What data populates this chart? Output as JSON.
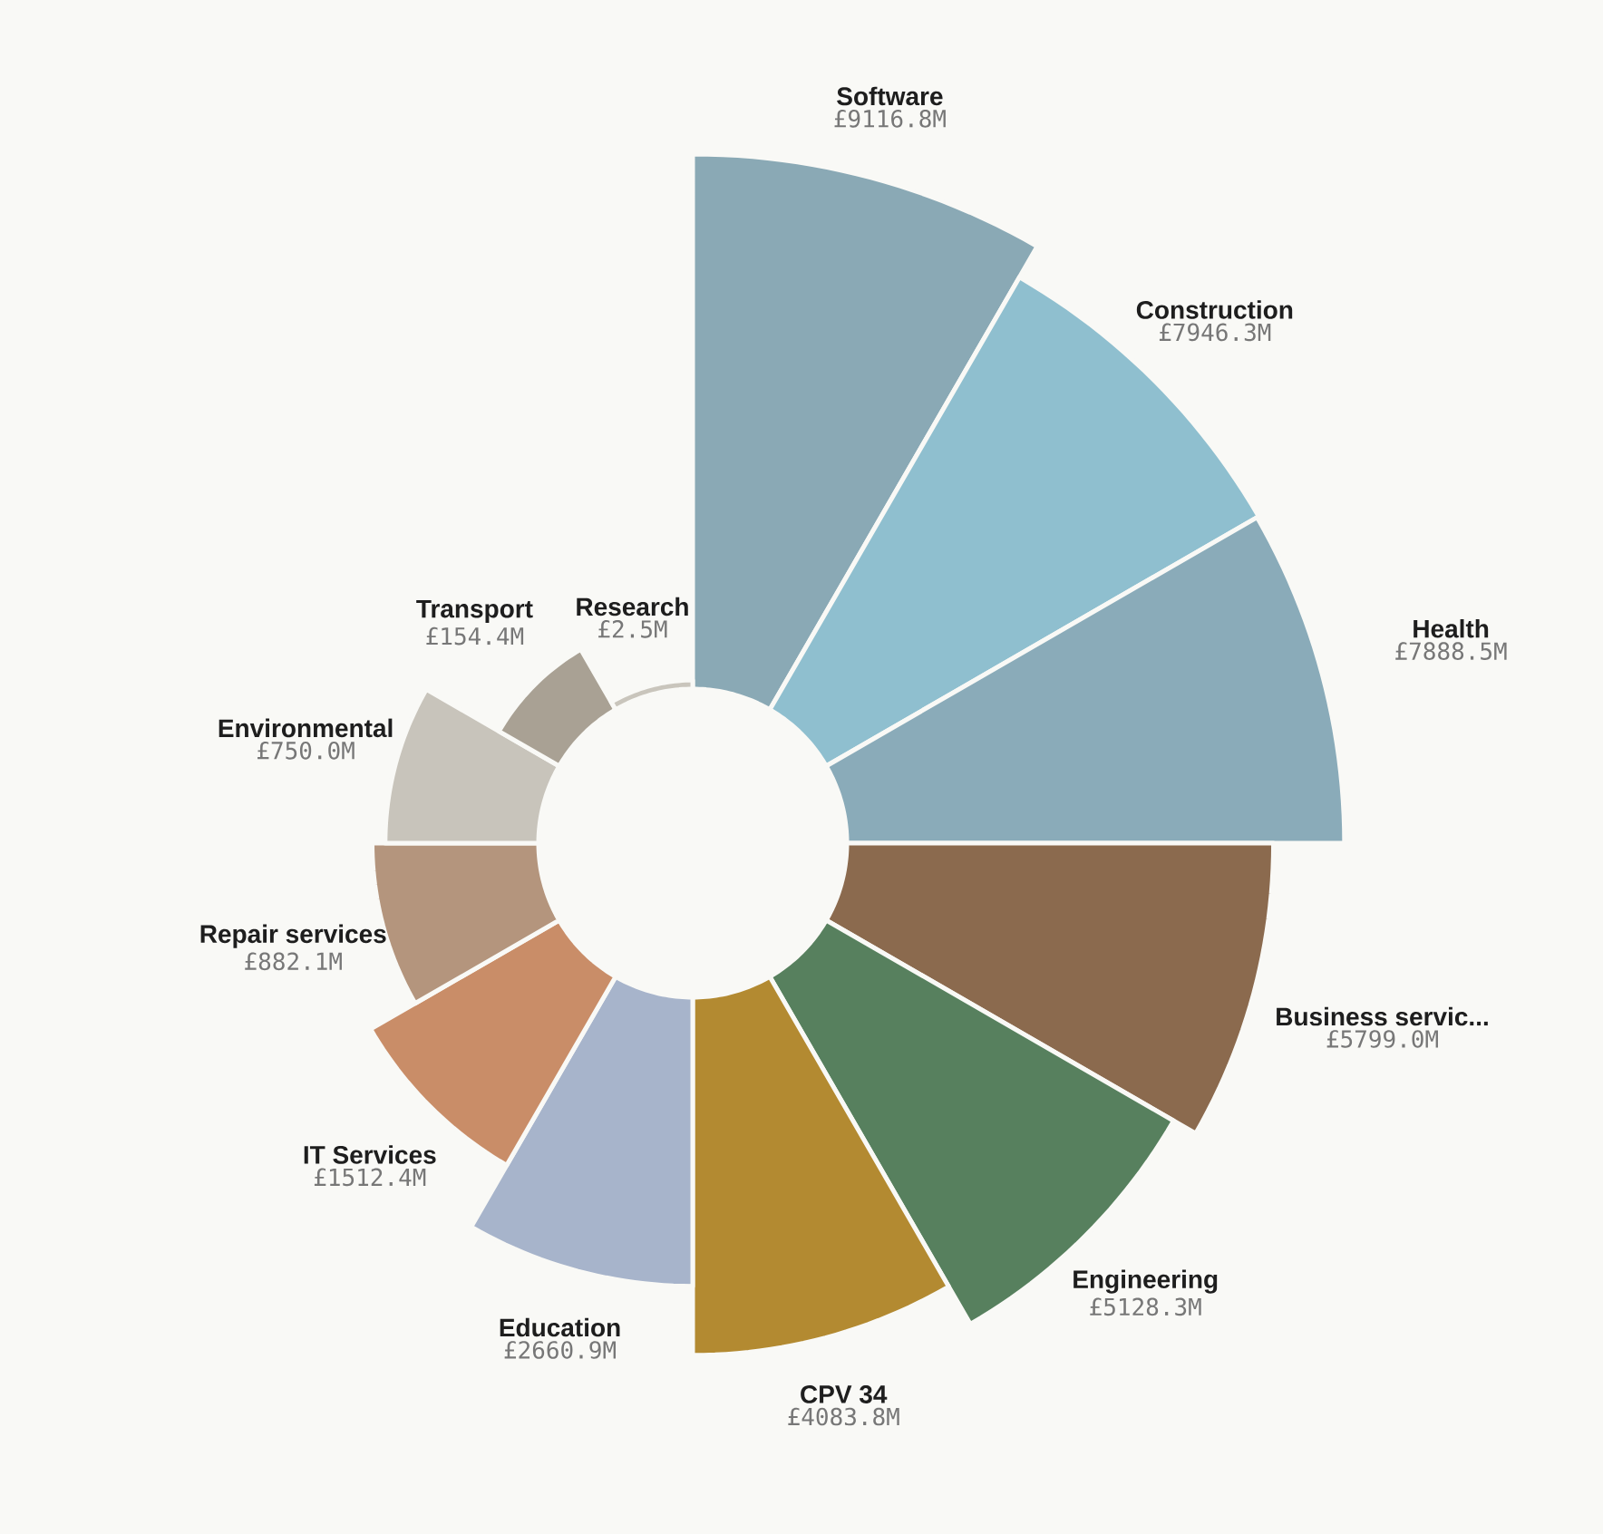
{
  "chart_data": {
    "type": "other",
    "categories": [
      "Software",
      "Construction",
      "Health",
      "Business servic...",
      "Engineering",
      "CPV 34",
      "Education",
      "IT Services",
      "Repair services",
      "Environmental",
      "Transport",
      "Research"
    ],
    "values": [
      9116.8,
      7946.3,
      7888.5,
      5799.0,
      5128.3,
      4083.8,
      2660.9,
      1512.4,
      882.1,
      750.0,
      154.4,
      2.5
    ],
    "colors": [
      "#8aa9b5",
      "#8fbfcf",
      "#8aabb9",
      "#8b6a4e",
      "#57805e",
      "#b38a31",
      "#a7b4cb",
      "#c98d68",
      "#b4957d",
      "#c8c4bb",
      "#a9a194",
      "#c9c5bc"
    ],
    "value_labels": [
      "£9116.8M",
      "£7946.3M",
      "£7888.5M",
      "£5799.0M",
      "£5128.3M",
      "£4083.8M",
      "£2660.9M",
      "£1512.4M",
      "£882.1M",
      "£750.0M",
      "£154.4M",
      "£2.5M"
    ]
  }
}
